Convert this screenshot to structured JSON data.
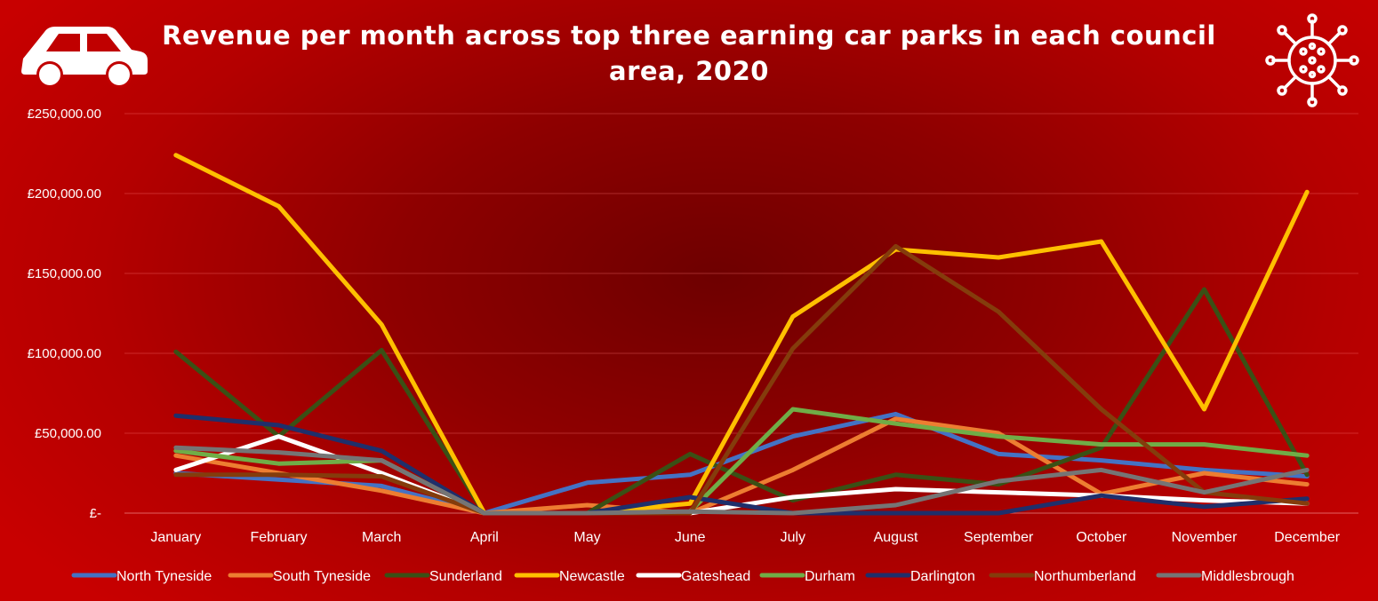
{
  "chart_data": {
    "type": "line",
    "title": "Revenue per month across top three earning car parks in each council area, 2020",
    "title_lines": [
      "Revenue per month across top three earning car parks in each council",
      "area, 2020"
    ],
    "xlabel": "",
    "ylabel": "",
    "categories": [
      "January",
      "February",
      "March",
      "April",
      "May",
      "June",
      "July",
      "August",
      "September",
      "October",
      "November",
      "December"
    ],
    "ylim": [
      0,
      250000
    ],
    "yticks": [
      0,
      50000,
      100000,
      150000,
      200000,
      250000
    ],
    "ytick_labels": [
      "£-",
      "£50,000.00",
      "£100,000.00",
      "£150,000.00",
      "£200,000.00",
      "£250,000.00"
    ],
    "grid": true,
    "legend_position": "bottom",
    "series": [
      {
        "name": "North Tyneside",
        "color": "#4472C4",
        "values": [
          25000,
          21000,
          17000,
          0,
          19000,
          24000,
          48000,
          62000,
          37000,
          33000,
          27000,
          23000
        ]
      },
      {
        "name": "South Tyneside",
        "color": "#ED7D31",
        "values": [
          36000,
          25000,
          14000,
          0,
          5000,
          0,
          27000,
          59000,
          50000,
          12000,
          25000,
          18000
        ]
      },
      {
        "name": "Sunderland",
        "color": "#3A5015",
        "values": [
          101000,
          48000,
          102000,
          0,
          0,
          37000,
          8000,
          24000,
          18000,
          41000,
          140000,
          24000
        ]
      },
      {
        "name": "Newcastle",
        "color": "#FFC000",
        "values": [
          224000,
          192000,
          118000,
          0,
          0,
          6000,
          123000,
          165000,
          160000,
          170000,
          65000,
          201000
        ]
      },
      {
        "name": "Gateshead",
        "color": "#FFFFFF",
        "values": [
          27000,
          48000,
          25000,
          0,
          0,
          0,
          10000,
          15000,
          13000,
          11000,
          8000,
          6000
        ]
      },
      {
        "name": "Durham",
        "color": "#70AD47",
        "values": [
          39000,
          31000,
          33000,
          0,
          0,
          1000,
          65000,
          56000,
          48000,
          43000,
          43000,
          36000
        ]
      },
      {
        "name": "Darlington",
        "color": "#1F2F6B",
        "values": [
          61000,
          55000,
          39000,
          0,
          0,
          10000,
          0,
          0,
          0,
          11000,
          4000,
          9000
        ]
      },
      {
        "name": "Northumberland",
        "color": "#843C0C",
        "values": [
          24000,
          24000,
          23000,
          0,
          0,
          0,
          103000,
          167000,
          126000,
          65000,
          13000,
          6000
        ]
      },
      {
        "name": "Middlesbrough",
        "color": "#757575",
        "values": [
          41000,
          38000,
          33000,
          0,
          0,
          1000,
          0,
          5000,
          20000,
          27000,
          13000,
          27000
        ]
      }
    ]
  }
}
